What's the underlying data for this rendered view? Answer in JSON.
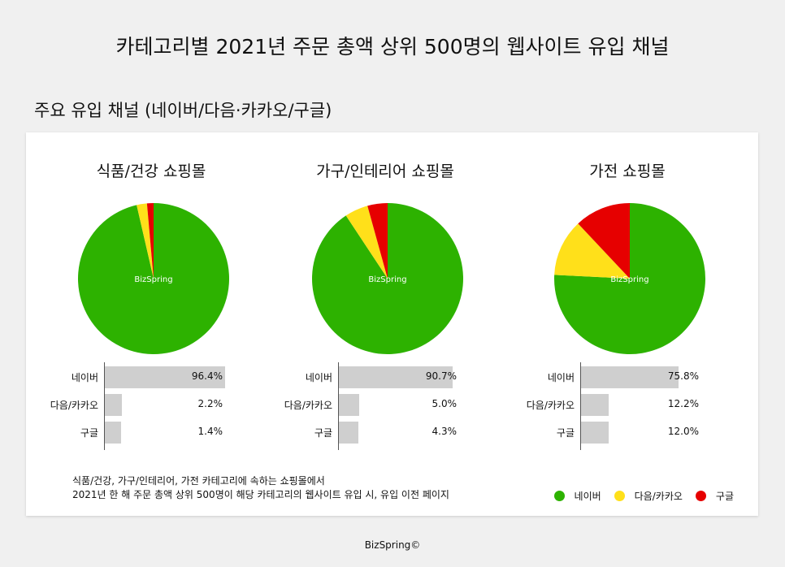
{
  "title": "카테고리별 2021년 주문 총액 상위 500명의 웹사이트 유입 채널",
  "subtitle": "주요 유입 채널 (네이버/다음·카카오/구글)",
  "watermark": "BizSpring",
  "chart_data": [
    {
      "type": "pie",
      "title": "식품/건강 쇼핑몰",
      "categories": [
        "네이버",
        "다음/카카오",
        "구글"
      ],
      "values": [
        96.4,
        2.2,
        1.4
      ],
      "value_labels": [
        "96.4%",
        "2.2%",
        "1.4%"
      ]
    },
    {
      "type": "pie",
      "title": "가구/인테리어 쇼핑몰",
      "categories": [
        "네이버",
        "다음/카카오",
        "구글"
      ],
      "values": [
        90.7,
        5.0,
        4.3
      ],
      "value_labels": [
        "90.7%",
        "5.0%",
        "4.3%"
      ]
    },
    {
      "type": "pie",
      "title": "가전 쇼핑몰",
      "categories": [
        "네이버",
        "다음/카카오",
        "구글"
      ],
      "values": [
        75.8,
        12.2,
        12.0
      ],
      "value_labels": [
        "75.8%",
        "12.2%",
        "12.0%"
      ]
    }
  ],
  "colors": [
    "#2db200",
    "#ffe01a",
    "#e60000"
  ],
  "note": [
    "식품/건강, 가구/인테리어, 가전 카테고리에 속하는 쇼핑몰에서",
    "2021년 한 해 주문 총액 상위 500명이 해당 카테고리의 웹사이트 유입 시, 유입 이전 페이지"
  ],
  "legend": [
    "네이버",
    "다음/카카오",
    "구글"
  ],
  "footer": "BizSpring©"
}
